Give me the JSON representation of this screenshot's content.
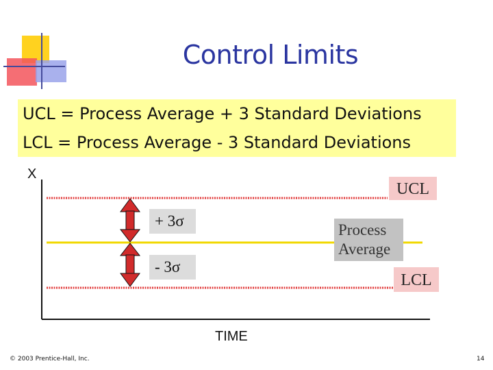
{
  "slide": {
    "title": "Control Limits",
    "definitions": [
      "UCL = Process Average + 3 Standard Deviations",
      "LCL = Process Average - 3 Standard Deviations"
    ],
    "y_axis_label": "X",
    "x_axis_label": "TIME",
    "ucl_label": "UCL",
    "lcl_label": "LCL",
    "average_label_line1": "Process",
    "average_label_line2": "Average",
    "plus_sigma_label": "+ 3σ",
    "minus_sigma_label": "- 3σ",
    "footer": "© 2003 Prentice-Hall, Inc.",
    "page_number": "14"
  },
  "colors": {
    "title": "#2a35a0",
    "definition_box": "#ffff9c",
    "limit_lines": "#e23b3b",
    "average_line": "#f1d800",
    "arrow": "#d12b2b",
    "label_box": "#f6c9c9"
  }
}
